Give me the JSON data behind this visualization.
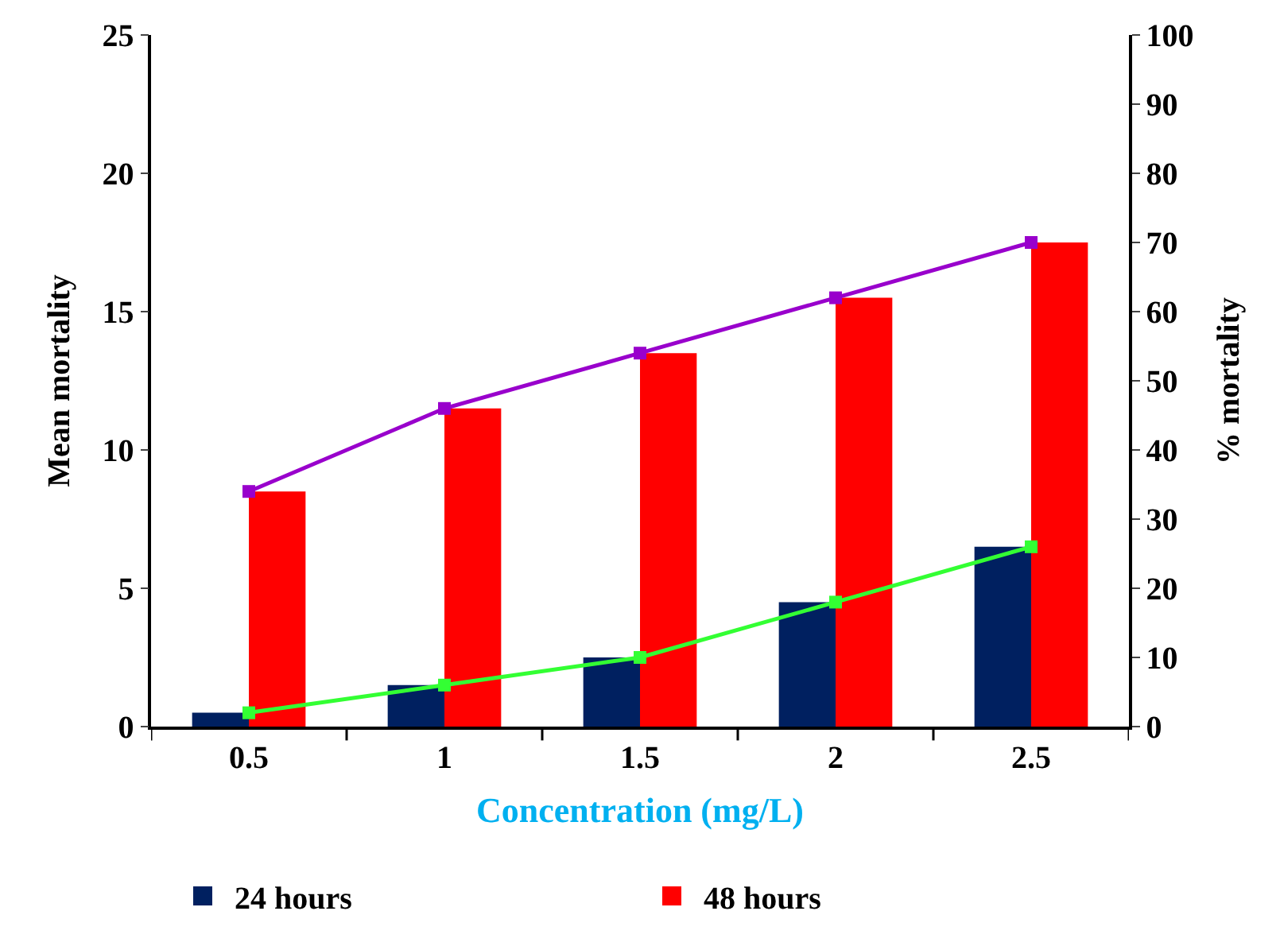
{
  "chart_data": {
    "type": "bar",
    "xlabel": "Concentration (mg/L)",
    "ylabel": "Mean mortality",
    "y2label": "% mortality",
    "categories": [
      "0.5",
      "1",
      "1.5",
      "2",
      "2.5"
    ],
    "series": [
      {
        "name": "24 hours",
        "color": "#002060",
        "values": [
          0.5,
          1.5,
          2.5,
          4.5,
          6.5
        ]
      },
      {
        "name": "48 hours",
        "color": "#ff0000",
        "values": [
          8.5,
          11.5,
          13.5,
          15.5,
          17.5
        ]
      },
      {
        "type": "line",
        "axis": "y2",
        "color": "#9900cc",
        "values": [
          34,
          46,
          54,
          62,
          70
        ]
      },
      {
        "type": "line",
        "axis": "y2",
        "color": "#33ff33",
        "values": [
          2,
          6,
          10,
          18,
          26
        ]
      }
    ],
    "ylim": [
      0,
      25
    ],
    "yticks": [
      0,
      5,
      10,
      15,
      20,
      25
    ],
    "y2lim": [
      0,
      100
    ],
    "y2ticks": [
      0,
      10,
      20,
      30,
      40,
      50,
      60,
      70,
      80,
      90,
      100
    ],
    "marker": "square",
    "line_style": "solid",
    "legend": "bottom"
  }
}
